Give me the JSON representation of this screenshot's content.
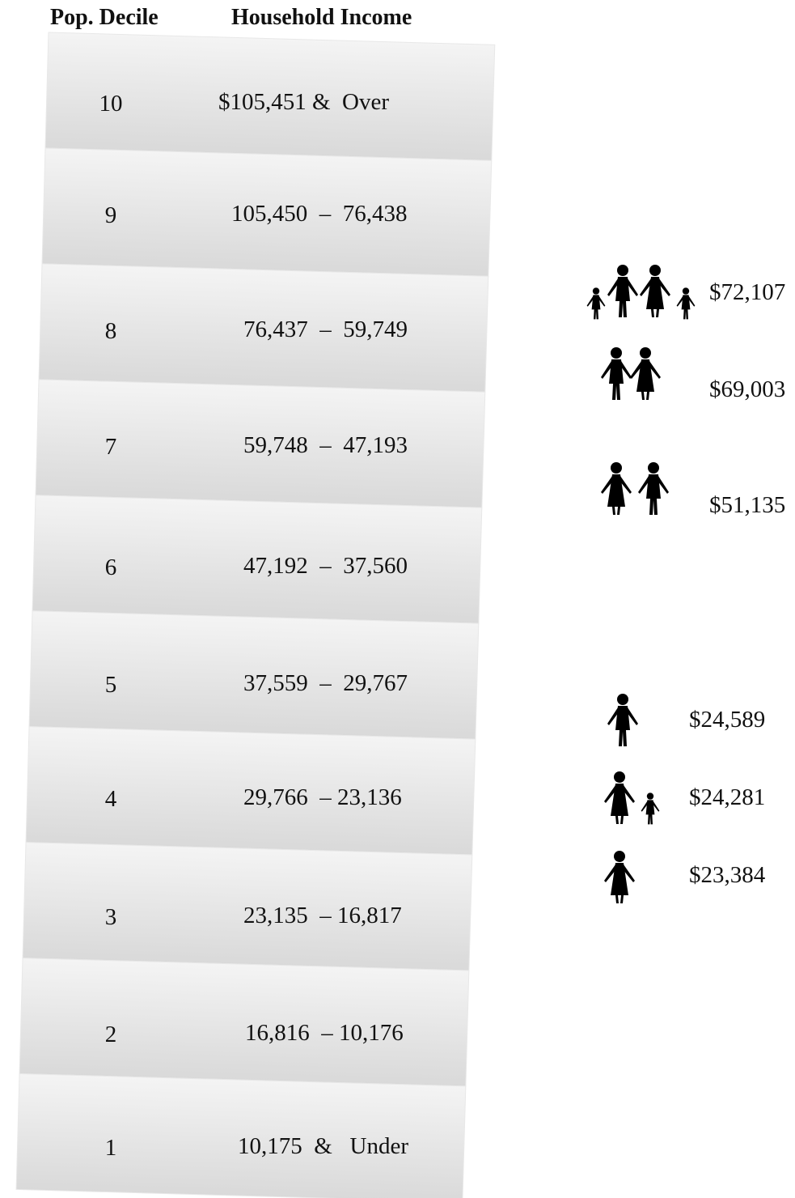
{
  "header": {
    "decile": "Pop. Decile",
    "income": "Household Income"
  },
  "table": {
    "rows": [
      [
        "10",
        "$105,451 &  Over"
      ],
      [
        "9",
        "105,450  –  76,438"
      ],
      [
        "8",
        "76,437  –  59,749"
      ],
      [
        "7",
        "59,748  –  47,193"
      ],
      [
        "6",
        "47,192  –  37,560"
      ],
      [
        "5",
        "37,559  –  29,767"
      ],
      [
        "4",
        "29,766  – 23,136"
      ],
      [
        "3",
        "23,135  – 16,817"
      ],
      [
        "2",
        "16,816  – 10,176"
      ],
      [
        "1",
        "10,175  &   Under"
      ]
    ]
  },
  "families": [
    {
      "label": "$72,107"
    },
    {
      "label": "$69,003"
    },
    {
      "label": "$51,135"
    },
    {
      "label": "$24,589"
    },
    {
      "label": "$24,281"
    },
    {
      "label": "$23,384"
    }
  ]
}
